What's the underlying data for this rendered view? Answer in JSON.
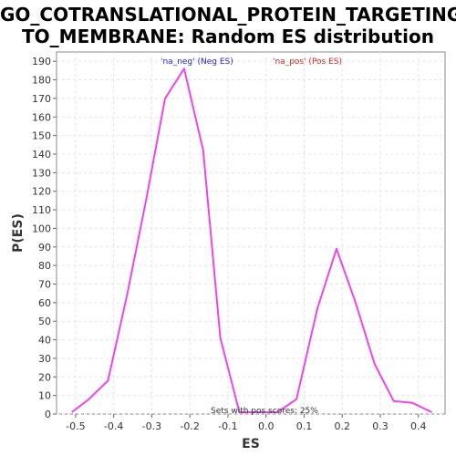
{
  "chart_data": {
    "type": "line",
    "title_line1": "GO_COTRANSLATIONAL_PROTEIN_TARGETING_",
    "title_line2": "TO_MEMBRANE: Random ES distribution",
    "xlabel": "ES",
    "ylabel": "P(ES)",
    "xlim": [
      -0.55,
      0.47
    ],
    "ylim": [
      0,
      195
    ],
    "x_ticks": [
      -0.5,
      -0.4,
      -0.3,
      -0.2,
      -0.1,
      0.0,
      0.1,
      0.2,
      0.3,
      0.4
    ],
    "x_tick_labels": [
      "-0.5",
      "-0.4",
      "-0.3",
      "-0.2",
      "-0.1",
      "0.0",
      "0.1",
      "0.2",
      "0.3",
      "0.4"
    ],
    "y_ticks": [
      0,
      10,
      20,
      30,
      40,
      50,
      60,
      70,
      80,
      90,
      100,
      110,
      120,
      130,
      140,
      150,
      160,
      170,
      180,
      190
    ],
    "grid": true,
    "line_color": "#ee44ee",
    "series": [
      {
        "x": [
          -0.51,
          -0.465,
          -0.415,
          -0.365,
          -0.315,
          -0.265,
          -0.215,
          -0.165,
          -0.12,
          -0.07,
          -0.02,
          0.03,
          0.08,
          0.135,
          0.185,
          0.235,
          0.285,
          0.335,
          0.385,
          0.435
        ],
        "y": [
          1,
          8,
          18,
          64,
          115,
          170,
          186,
          142,
          41,
          1,
          1,
          1,
          8,
          57,
          89,
          60,
          27,
          7,
          6,
          1
        ]
      }
    ],
    "legend": [
      {
        "label": "'na_neg' (Neg ES)",
        "color": "#2222dd"
      },
      {
        "label": "'na_pos' (Pos ES)",
        "color": "#dd2222"
      }
    ],
    "annotation": "Sets with pos scores: 25%"
  }
}
